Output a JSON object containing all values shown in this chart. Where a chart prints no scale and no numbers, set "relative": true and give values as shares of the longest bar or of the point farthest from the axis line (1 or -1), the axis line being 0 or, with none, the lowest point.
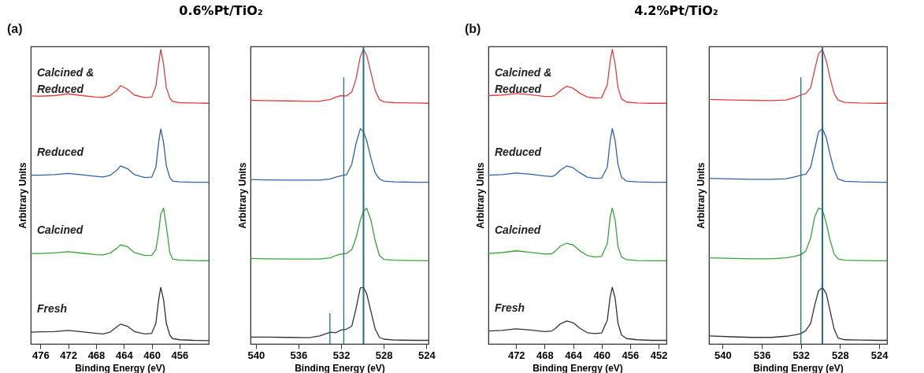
{
  "chart_data": [
    {
      "type": "line",
      "title": "0.6%Pt/TiO₂",
      "annotations": [
        "(a)"
      ],
      "xlabel": "Binding Energy (eV)",
      "ylabel": "Arbitrary Units",
      "relative": true,
      "xlim": [
        477.4,
        451.8
      ],
      "xticks": [
        476,
        472,
        468,
        464,
        460,
        456
      ],
      "x": [
        477.4,
        476,
        474,
        472,
        470,
        468,
        467,
        466,
        465,
        464.5,
        463.5,
        462.5,
        461,
        460,
        459.4,
        459.0,
        458.7,
        458.3,
        457.9,
        457.4,
        457,
        456,
        454,
        451.8
      ],
      "series": [
        {
          "name": "Calcined & Reduced",
          "color": "#e0403f",
          "values": [
            0.842,
            0.841,
            0.843,
            0.849,
            0.843,
            0.838,
            0.837,
            0.843,
            0.861,
            0.877,
            0.865,
            0.845,
            0.836,
            0.838,
            0.875,
            0.95,
            1.0,
            0.95,
            0.87,
            0.835,
            0.823,
            0.819,
            0.818,
            0.817
          ]
        },
        {
          "name": "Reduced",
          "color": "#2f62a8",
          "values": [
            0.573,
            0.573,
            0.575,
            0.579,
            0.574,
            0.569,
            0.567,
            0.572,
            0.59,
            0.604,
            0.595,
            0.575,
            0.565,
            0.566,
            0.6,
            0.685,
            0.73,
            0.685,
            0.605,
            0.565,
            0.553,
            0.55,
            0.549,
            0.549
          ]
        },
        {
          "name": "Calcined",
          "color": "#36a536",
          "values": [
            0.307,
            0.307,
            0.309,
            0.313,
            0.308,
            0.303,
            0.302,
            0.308,
            0.325,
            0.336,
            0.33,
            0.31,
            0.3,
            0.301,
            0.32,
            0.38,
            0.44,
            0.461,
            0.4,
            0.31,
            0.288,
            0.284,
            0.283,
            0.282
          ]
        },
        {
          "name": "Fresh",
          "color": "#333333",
          "values": [
            0.04,
            0.041,
            0.042,
            0.046,
            0.041,
            0.036,
            0.034,
            0.04,
            0.058,
            0.067,
            0.06,
            0.042,
            0.034,
            0.036,
            0.07,
            0.15,
            0.192,
            0.15,
            0.07,
            0.03,
            0.018,
            0.014,
            0.012,
            0.011
          ]
        }
      ]
    },
    {
      "type": "line",
      "xlabel": "Binding Energy (eV)",
      "ylabel": "Arbitrary Units",
      "relative": true,
      "xlim": [
        540.5,
        523.8
      ],
      "xticks": [
        540,
        536,
        532,
        528,
        524
      ],
      "x": [
        540.5,
        539,
        537,
        535,
        534,
        533,
        532.5,
        532,
        531.5,
        531,
        530.6,
        530.2,
        529.9,
        529.6,
        529.2,
        528.8,
        528.4,
        528,
        527,
        525,
        523.8
      ],
      "ref_lines": [
        {
          "axis": "x",
          "value": 529.9,
          "color": "#1f6e8c"
        }
      ],
      "series": [
        {
          "color": "#e0403f",
          "values": [
            0.827,
            0.826,
            0.825,
            0.824,
            0.824,
            0.83,
            0.838,
            0.843,
            0.842,
            0.855,
            0.9,
            0.975,
            1.0,
            0.98,
            0.92,
            0.86,
            0.83,
            0.822,
            0.819,
            0.818,
            0.817
          ]
        },
        {
          "color": "#2f62a8",
          "values": [
            0.558,
            0.557,
            0.556,
            0.556,
            0.556,
            0.56,
            0.566,
            0.571,
            0.574,
            0.61,
            0.68,
            0.731,
            0.72,
            0.69,
            0.63,
            0.58,
            0.56,
            0.553,
            0.55,
            0.549,
            0.549
          ]
        },
        {
          "color": "#36a536",
          "values": [
            0.29,
            0.289,
            0.288,
            0.288,
            0.288,
            0.292,
            0.3,
            0.305,
            0.307,
            0.32,
            0.36,
            0.42,
            0.45,
            0.461,
            0.42,
            0.35,
            0.3,
            0.287,
            0.284,
            0.283,
            0.282
          ]
        },
        {
          "color": "#333333",
          "values": [
            0.023,
            0.023,
            0.022,
            0.021,
            0.027,
            0.04,
            0.038,
            0.047,
            0.05,
            0.06,
            0.12,
            0.19,
            0.192,
            0.17,
            0.11,
            0.05,
            0.022,
            0.016,
            0.013,
            0.012,
            0.012
          ]
        },
        {
          "type": "line",
          "color": "#1f6e8c",
          "x": [
            531.75,
            531.75
          ],
          "values": [
            0,
            0.905
          ]
        },
        {
          "type": "line",
          "color": "#1f6e8c",
          "x": [
            533.05,
            533.05
          ],
          "values": [
            0,
            0.104
          ]
        }
      ]
    },
    {
      "type": "line",
      "title": "4.2%Pt/TiO₂",
      "annotations": [
        "(b)"
      ],
      "xlabel": "Binding Energy (eV)",
      "ylabel": "Arbitrary Units",
      "relative": true,
      "xlim": [
        475.9,
        450.9
      ],
      "xticks": [
        472,
        468,
        464,
        460,
        456,
        452
      ],
      "x": [
        475.9,
        474,
        472,
        470,
        468,
        467,
        466.5,
        465.8,
        464.9,
        464,
        463,
        462,
        461,
        460,
        459.2,
        458.8,
        458.5,
        458.1,
        457.7,
        457.2,
        456.5,
        455,
        453,
        450.9
      ],
      "series": [
        {
          "name": "Calcined & Reduced",
          "color": "#e0403f",
          "values": [
            0.843,
            0.845,
            0.85,
            0.846,
            0.84,
            0.84,
            0.845,
            0.86,
            0.875,
            0.868,
            0.85,
            0.838,
            0.835,
            0.836,
            0.88,
            0.96,
            1.0,
            0.95,
            0.87,
            0.832,
            0.821,
            0.818,
            0.817,
            0.817
          ]
        },
        {
          "name": "Reduced",
          "color": "#2f62a8",
          "values": [
            0.573,
            0.575,
            0.58,
            0.576,
            0.57,
            0.568,
            0.573,
            0.59,
            0.604,
            0.598,
            0.58,
            0.566,
            0.562,
            0.563,
            0.6,
            0.69,
            0.731,
            0.69,
            0.61,
            0.565,
            0.553,
            0.55,
            0.549,
            0.549
          ]
        },
        {
          "name": "Calcined",
          "color": "#36a536",
          "values": [
            0.307,
            0.31,
            0.316,
            0.311,
            0.305,
            0.306,
            0.315,
            0.332,
            0.342,
            0.336,
            0.315,
            0.3,
            0.295,
            0.297,
            0.34,
            0.43,
            0.461,
            0.42,
            0.33,
            0.295,
            0.286,
            0.283,
            0.282,
            0.282
          ]
        },
        {
          "name": "Fresh",
          "color": "#333333",
          "values": [
            0.044,
            0.046,
            0.051,
            0.047,
            0.042,
            0.044,
            0.052,
            0.068,
            0.078,
            0.072,
            0.052,
            0.038,
            0.035,
            0.037,
            0.08,
            0.16,
            0.192,
            0.155,
            0.07,
            0.03,
            0.018,
            0.014,
            0.012,
            0.012
          ]
        }
      ]
    },
    {
      "type": "line",
      "xlabel": "Binding Energy (eV)",
      "ylabel": "Arbitrary Units",
      "relative": true,
      "xlim": [
        541.4,
        523.2
      ],
      "xticks": [
        540,
        536,
        532,
        528,
        524
      ],
      "x": [
        541.4,
        539,
        537,
        535,
        533.5,
        532.5,
        532,
        531.5,
        531,
        530.6,
        530.2,
        529.8,
        529.4,
        529,
        528.6,
        528.2,
        527.5,
        526,
        524,
        523.2
      ],
      "ref_lines": [
        {
          "axis": "x",
          "value": 529.8,
          "color": "#1f6e8c"
        }
      ],
      "series": [
        {
          "color": "#e0403f",
          "values": [
            0.83,
            0.828,
            0.827,
            0.826,
            0.828,
            0.838,
            0.845,
            0.85,
            0.87,
            0.93,
            0.985,
            1.0,
            0.96,
            0.9,
            0.85,
            0.828,
            0.82,
            0.818,
            0.817,
            0.817
          ]
        },
        {
          "color": "#2f62a8",
          "values": [
            0.562,
            0.56,
            0.559,
            0.559,
            0.561,
            0.568,
            0.573,
            0.576,
            0.6,
            0.66,
            0.72,
            0.731,
            0.7,
            0.64,
            0.59,
            0.56,
            0.552,
            0.55,
            0.549,
            0.549
          ]
        },
        {
          "color": "#36a536",
          "values": [
            0.292,
            0.29,
            0.289,
            0.289,
            0.292,
            0.298,
            0.303,
            0.315,
            0.36,
            0.43,
            0.461,
            0.455,
            0.41,
            0.35,
            0.305,
            0.288,
            0.284,
            0.283,
            0.282,
            0.282
          ]
        },
        {
          "color": "#333333",
          "values": [
            0.027,
            0.024,
            0.022,
            0.022,
            0.026,
            0.031,
            0.035,
            0.045,
            0.07,
            0.13,
            0.18,
            0.192,
            0.17,
            0.11,
            0.05,
            0.02,
            0.014,
            0.013,
            0.012,
            0.012
          ]
        },
        {
          "type": "line",
          "color": "#1f6e8c",
          "x": [
            532.0,
            532.0
          ],
          "values": [
            0,
            0.905
          ]
        }
      ]
    }
  ]
}
